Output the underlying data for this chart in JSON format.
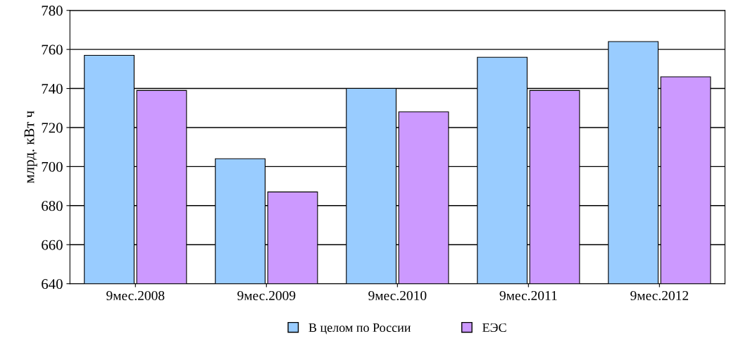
{
  "chart_data": {
    "type": "bar",
    "ylabel": "млрд. кВт ч",
    "categories": [
      "9мес.2008",
      "9мес.2009",
      "9мес.2010",
      "9мес.2011",
      "9мес.2012"
    ],
    "series": [
      {
        "name": "В целом по России",
        "color": "#99ccff",
        "values": [
          757,
          704,
          740,
          756,
          764
        ]
      },
      {
        "name": "ЕЭС",
        "color": "#cc99ff",
        "values": [
          739,
          687,
          728,
          739,
          746
        ]
      }
    ],
    "ylim": [
      640,
      780
    ],
    "yticks": [
      640,
      660,
      680,
      700,
      720,
      740,
      760,
      780
    ],
    "grid": "y",
    "legend": "bottom"
  }
}
